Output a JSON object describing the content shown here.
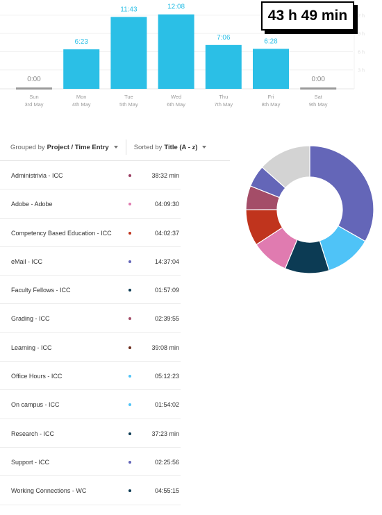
{
  "total": "43 h 49 min",
  "chart_data": {
    "type": "bar",
    "categories": [
      "Sun",
      "Mon",
      "Tue",
      "Wed",
      "Thu",
      "Fri",
      "Sat"
    ],
    "dates": [
      "3rd May",
      "4th May",
      "5th May",
      "6th May",
      "7th May",
      "8th May",
      "9th May"
    ],
    "values": [
      0.0,
      6.383,
      11.717,
      12.133,
      7.1,
      6.467,
      0.0
    ],
    "value_labels": [
      "0:00",
      "6:23",
      "11:43",
      "12:08",
      "7:06",
      "6:28",
      "0:00"
    ],
    "y_ticks": [
      3,
      6,
      9,
      12
    ],
    "y_tick_labels": [
      "3 h",
      "6 h",
      "9 h",
      "12 h"
    ],
    "ylim": [
      0,
      14.5
    ],
    "bar_color": "#2bbfe6",
    "zero_bar_color": "#9a9a9a",
    "label_color": "#2bbfe6",
    "zero_label_color": "#888888"
  },
  "controls": {
    "grouped_prefix": "Grouped by",
    "grouped_value": "Project / Time Entry",
    "sorted_prefix": "Sorted by",
    "sorted_value": "Title (A - z)"
  },
  "entries": [
    {
      "title": "Administrivia - ICC",
      "duration": "38:32 min",
      "color": "#9a3d62"
    },
    {
      "title": "Adobe - Adobe",
      "duration": "04:09:30",
      "color": "#e07bb0"
    },
    {
      "title": "Competency Based Education - ICC",
      "duration": "04:02:37",
      "color": "#c0341d"
    },
    {
      "title": "eMail - ICC",
      "duration": "14:37:04",
      "color": "#6466b8"
    },
    {
      "title": "Faculty Fellows - ICC",
      "duration": "01:57:09",
      "color": "#0c3b54"
    },
    {
      "title": "Grading - ICC",
      "duration": "02:39:55",
      "color": "#a44d68"
    },
    {
      "title": "Learning - ICC",
      "duration": "39:08 min",
      "color": "#6b2c1c"
    },
    {
      "title": "Office Hours - ICC",
      "duration": "05:12:23",
      "color": "#4fc3f7"
    },
    {
      "title": "On campus - ICC",
      "duration": "01:54:02",
      "color": "#4fc3f7"
    },
    {
      "title": "Research - ICC",
      "duration": "37:23 min",
      "color": "#0c3b54"
    },
    {
      "title": "Support - ICC",
      "duration": "02:25:56",
      "color": "#6466b8"
    },
    {
      "title": "Working Connections - WC",
      "duration": "04:55:15",
      "color": "#0c3b54"
    }
  ],
  "donut_data": {
    "type": "pie",
    "slices": [
      {
        "value": 14.62,
        "color": "#6466b8"
      },
      {
        "value": 5.2,
        "color": "#4fc3f7"
      },
      {
        "value": 4.92,
        "color": "#0c3b54"
      },
      {
        "value": 4.16,
        "color": "#e07bb0"
      },
      {
        "value": 4.04,
        "color": "#c0341d"
      },
      {
        "value": 2.67,
        "color": "#a44d68"
      },
      {
        "value": 2.43,
        "color": "#6466b8"
      },
      {
        "value": 5.9,
        "color": "#d3d3d3"
      }
    ]
  }
}
